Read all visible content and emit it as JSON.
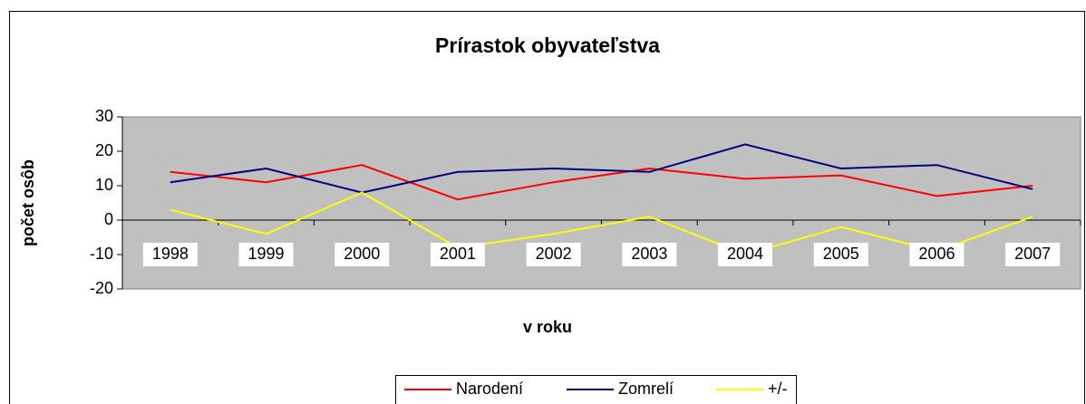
{
  "chart_data": {
    "type": "line",
    "title": "Prírastok obyvateľstva",
    "xlabel": "v roku",
    "ylabel": "počet osôb",
    "categories": [
      "1998",
      "1999",
      "2000",
      "2001",
      "2002",
      "2003",
      "2004",
      "2005",
      "2006",
      "2007"
    ],
    "series": [
      {
        "name": "Narodení",
        "color": "#ff0000",
        "values": [
          14,
          11,
          16,
          6,
          11,
          15,
          12,
          13,
          7,
          10
        ]
      },
      {
        "name": "Zomrelí",
        "color": "#000080",
        "values": [
          11,
          15,
          8,
          14,
          15,
          14,
          22,
          15,
          16,
          9
        ]
      },
      {
        "name": "+/-",
        "color": "#ffff00",
        "values": [
          3,
          -4,
          8,
          -8,
          -4,
          1,
          -10,
          -2,
          -9,
          1
        ]
      }
    ],
    "ylim": [
      -20,
      30
    ],
    "yticks": [
      -20,
      -10,
      0,
      10,
      20,
      30
    ],
    "plot_background": "#c0c0c0",
    "legend": "bottom"
  }
}
